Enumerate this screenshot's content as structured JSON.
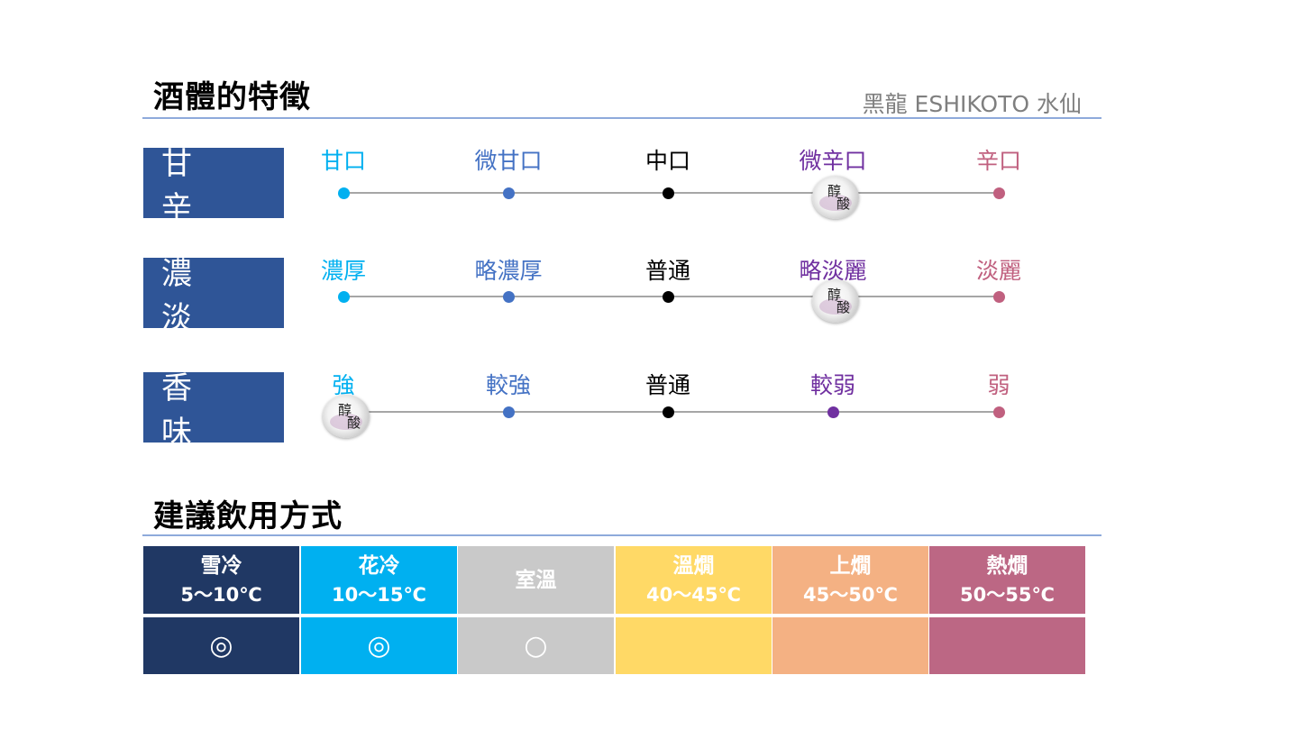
{
  "header": {
    "title": "酒體的特徵",
    "product": "黑龍 ESHIKOTO 水仙"
  },
  "taste_rows": [
    {
      "label": "甘 辛",
      "marker_position": 3,
      "marker_text": "醇酸",
      "labels": [
        "甘口",
        "微甘口",
        "中口",
        "微辛口",
        "辛口"
      ]
    },
    {
      "label": "濃 淡",
      "marker_position": 3,
      "marker_text": "醇酸",
      "labels": [
        "濃厚",
        "略濃厚",
        "普通",
        "略淡麗",
        "淡麗"
      ]
    },
    {
      "label": "香 味",
      "marker_position": 0,
      "marker_text": "醇酸",
      "labels": [
        "強",
        "較強",
        "普通",
        "較弱",
        "弱"
      ]
    }
  ],
  "scale_colors": [
    "#00b0f0",
    "#4472c4",
    "#000000",
    "#7030a0",
    "#c0607f"
  ],
  "serving": {
    "title": "建議飲用方式",
    "columns": [
      {
        "name": "雪冷",
        "range": "5～10℃",
        "mark": "◎",
        "color": "#203864"
      },
      {
        "name": "花冷",
        "range": "10～15℃",
        "mark": "◎",
        "color": "#00b0f0"
      },
      {
        "name": "室溫",
        "range": "",
        "mark": "○",
        "color": "#c9c9c9"
      },
      {
        "name": "溫燗",
        "range": "40～45℃",
        "mark": "",
        "color": "#ffd966"
      },
      {
        "name": "上燗",
        "range": "45～50℃",
        "mark": "",
        "color": "#f4b183"
      },
      {
        "name": "熱燗",
        "range": "50～55℃",
        "mark": "",
        "color": "#bc6784"
      }
    ]
  }
}
